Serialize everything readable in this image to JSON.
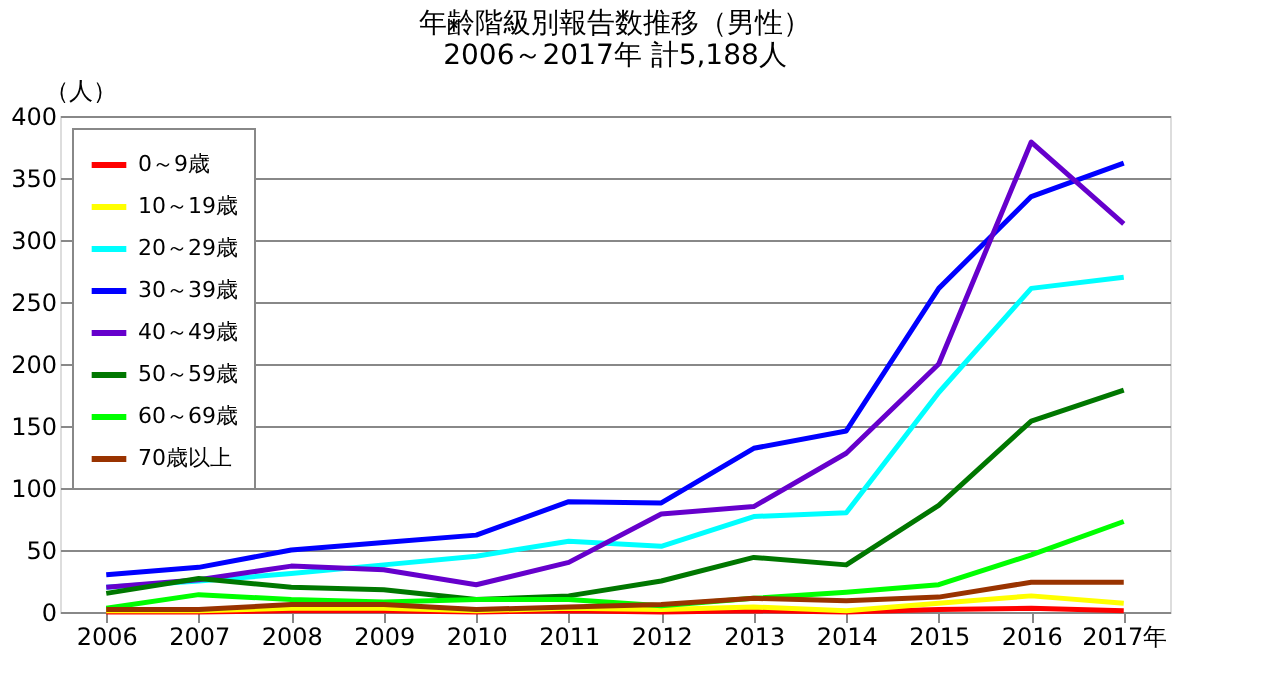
{
  "chart_data": {
    "type": "line",
    "title": "年齢階級別報告数推移（男性）",
    "subtitle": "2006～2017年  計5,188人",
    "ylabel": "（人）",
    "categories": [
      "2006",
      "2007",
      "2008",
      "2009",
      "2010",
      "2011",
      "2012",
      "2013",
      "2014",
      "2015",
      "2016",
      "2017年"
    ],
    "series": [
      {
        "name": "0～9歳",
        "color": "#ff0000",
        "values": [
          0,
          0,
          1,
          1,
          0,
          1,
          0,
          1,
          0,
          2,
          3,
          1
        ]
      },
      {
        "name": "10～19歳",
        "color": "#ffff00",
        "values": [
          1,
          1,
          3,
          3,
          1,
          3,
          2,
          4,
          1,
          7,
          13,
          7
        ]
      },
      {
        "name": "20～29歳",
        "color": "#00ffff",
        "values": [
          20,
          25,
          31,
          38,
          45,
          57,
          53,
          77,
          80,
          177,
          261,
          270
        ]
      },
      {
        "name": "30～39歳",
        "color": "#0000ff",
        "values": [
          30,
          36,
          50,
          56,
          62,
          89,
          88,
          132,
          146,
          261,
          335,
          362
        ]
      },
      {
        "name": "40～49歳",
        "color": "#6600cc",
        "values": [
          20,
          26,
          37,
          34,
          22,
          40,
          79,
          85,
          128,
          200,
          379,
          313
        ]
      },
      {
        "name": "50～59歳",
        "color": "#007700",
        "values": [
          15,
          27,
          20,
          18,
          10,
          13,
          25,
          44,
          38,
          86,
          154,
          179
        ]
      },
      {
        "name": "60～69歳",
        "color": "#00ff00",
        "values": [
          3,
          14,
          10,
          8,
          10,
          10,
          5,
          11,
          16,
          22,
          46,
          73
        ]
      },
      {
        "name": "70歳以上",
        "color": "#993300",
        "values": [
          2,
          2,
          6,
          6,
          2,
          4,
          6,
          11,
          9,
          12,
          24,
          24
        ]
      }
    ],
    "ylim": [
      0,
      400
    ],
    "yticks": [
      0,
      50,
      100,
      150,
      200,
      250,
      300,
      350,
      400
    ],
    "grid": "y",
    "legend": "top left",
    "marker": "none",
    "line_style": "solid"
  }
}
